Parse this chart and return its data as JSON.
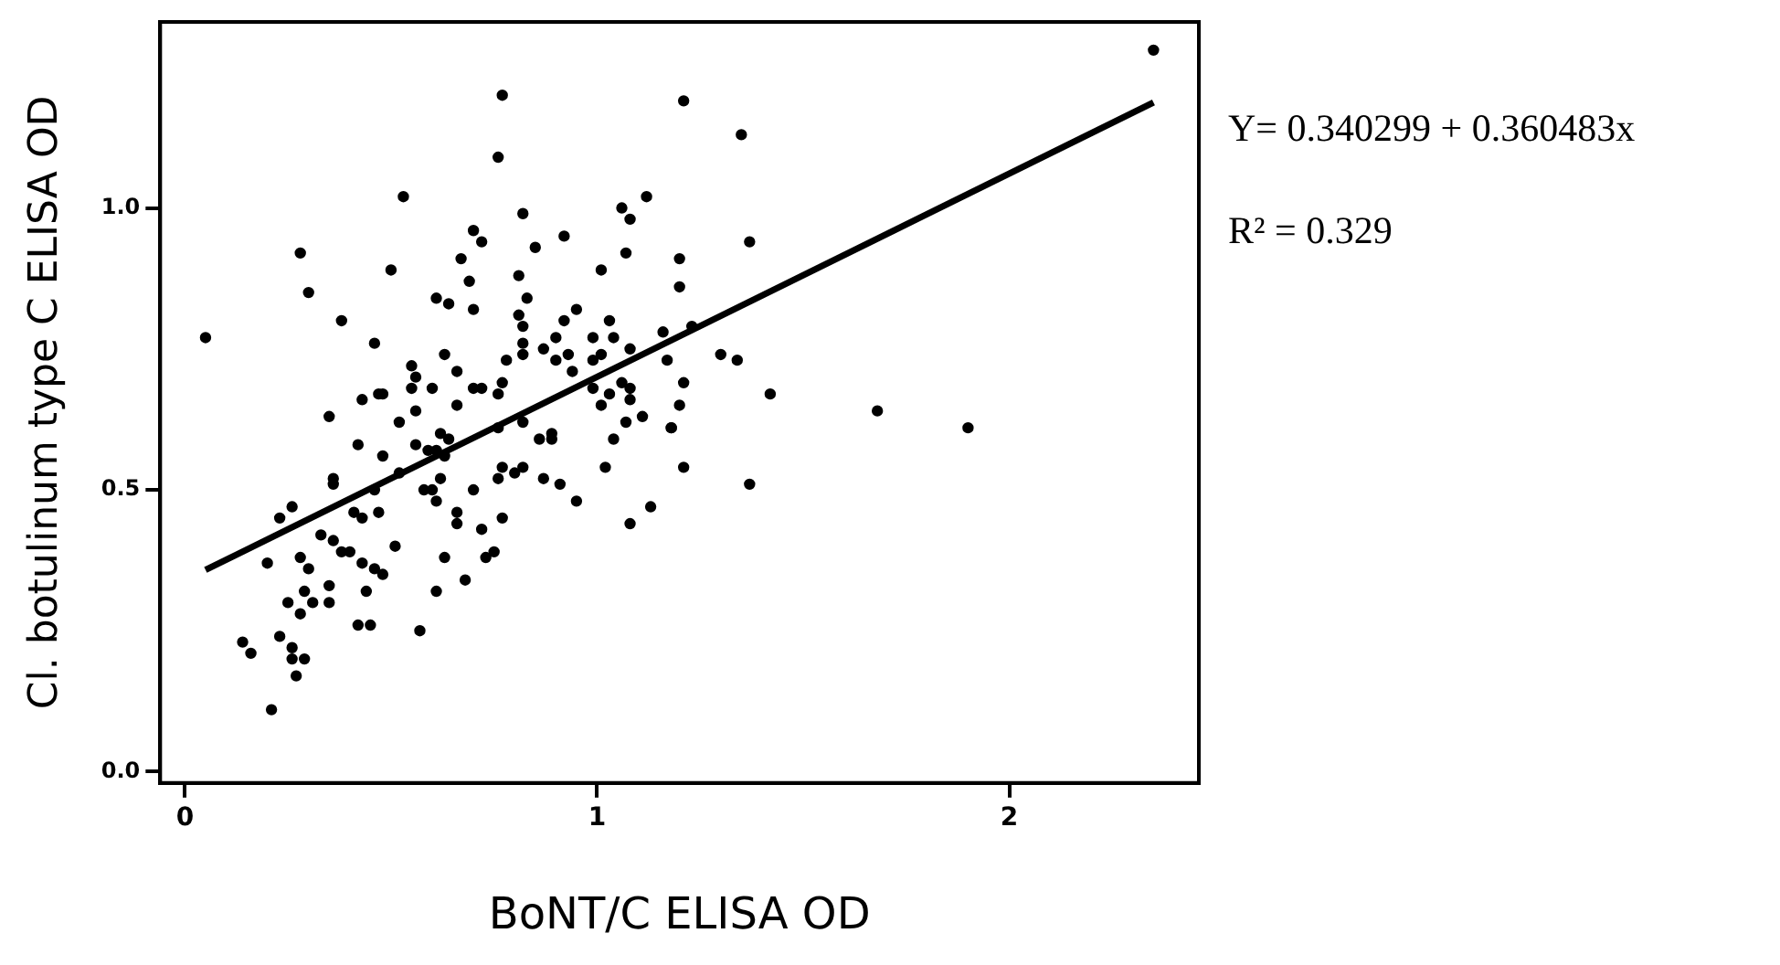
{
  "chart_data": {
    "type": "scatter",
    "xlabel": "BoNT/C ELISA OD",
    "ylabel": "Cl. botulinum type C ELISA OD",
    "annotations": [
      "Y= 0.340299 + 0.360483x",
      "R² = 0.329"
    ],
    "xlim": [
      -0.06,
      2.46
    ],
    "xticks": [
      0,
      1,
      2
    ],
    "ylim": [
      -0.02,
      1.33
    ],
    "yticks": [
      {
        "value": 0,
        "label": "0.0"
      },
      {
        "value": 0.5,
        "label": "0.5"
      },
      {
        "value": 1,
        "label": "1.0"
      }
    ],
    "grid": false,
    "legend": false,
    "marker": "circle",
    "series": [
      {
        "color": "#000000",
        "x": [
          0.05,
          0.28,
          0.3,
          0.38,
          0.46,
          0.35,
          0.43,
          0.47,
          0.48,
          0.5,
          0.53,
          0.52,
          0.56,
          0.55,
          0.56,
          0.55,
          0.6,
          0.61,
          0.64,
          0.63,
          0.66,
          0.66,
          0.67,
          0.69,
          0.7,
          0.7,
          0.72,
          0.76,
          0.77,
          0.7,
          0.72,
          0.76,
          0.77,
          0.78,
          0.81,
          0.82,
          0.83,
          0.85,
          0.81,
          0.82,
          0.82,
          0.82,
          0.87,
          0.9,
          0.9,
          0.92,
          0.92,
          0.93,
          0.95,
          0.94,
          0.99,
          0.99,
          1.01,
          1.01,
          1.03,
          1.04,
          1.06,
          1.07,
          1.08,
          1.12,
          1.08,
          0.99,
          1.01,
          1.03,
          1.06,
          1.08,
          1.08,
          1.07,
          1.11,
          1.16,
          1.17,
          1.2,
          1.2,
          1.21,
          1.21,
          1.2,
          1.18,
          1.3,
          1.23,
          0.82,
          2.35,
          1.35,
          1.37,
          1.34,
          1.42,
          1.68,
          1.9,
          0.26,
          0.23,
          0.2,
          0.28,
          0.3,
          0.25,
          0.28,
          0.29,
          0.31,
          0.35,
          0.35,
          0.23,
          0.26,
          0.26,
          0.29,
          0.27,
          0.21,
          0.14,
          0.16,
          0.33,
          0.36,
          0.38,
          0.4,
          0.36,
          0.36,
          0.42,
          0.48,
          0.41,
          0.43,
          0.47,
          0.51,
          0.43,
          0.46,
          0.48,
          0.44,
          0.42,
          0.45,
          0.46,
          0.52,
          0.56,
          0.59,
          0.61,
          0.63,
          0.58,
          0.6,
          0.62,
          0.61,
          0.62,
          0.64,
          0.57,
          0.61,
          0.63,
          0.66,
          0.66,
          0.68,
          0.7,
          0.72,
          0.73,
          0.75,
          0.77,
          0.76,
          0.77,
          0.76,
          0.8,
          0.82,
          0.87,
          0.86,
          0.89,
          0.89,
          0.91,
          0.95,
          1.02,
          1.04,
          1.08,
          1.13,
          1.21,
          1.18,
          1.37
        ],
        "values": [
          0.77,
          0.92,
          0.85,
          0.8,
          0.76,
          0.63,
          0.66,
          0.67,
          0.67,
          0.89,
          1.02,
          0.62,
          0.64,
          0.72,
          0.7,
          0.68,
          0.68,
          0.84,
          0.83,
          0.74,
          0.71,
          0.65,
          0.91,
          0.87,
          0.82,
          0.96,
          0.94,
          1.09,
          1.2,
          0.68,
          0.68,
          0.67,
          0.69,
          0.73,
          0.88,
          0.99,
          0.84,
          0.93,
          0.81,
          0.79,
          0.76,
          0.74,
          0.75,
          0.77,
          0.73,
          0.8,
          0.95,
          0.74,
          0.82,
          0.71,
          0.77,
          0.73,
          0.74,
          0.89,
          0.8,
          0.77,
          1.0,
          0.92,
          0.98,
          1.02,
          0.75,
          0.68,
          0.65,
          0.67,
          0.69,
          0.68,
          0.66,
          0.62,
          0.63,
          0.78,
          0.73,
          0.91,
          0.86,
          1.19,
          0.69,
          0.65,
          0.61,
          0.74,
          0.79,
          0.62,
          1.28,
          1.13,
          0.94,
          0.73,
          0.67,
          0.64,
          0.61,
          0.47,
          0.45,
          0.37,
          0.38,
          0.36,
          0.3,
          0.28,
          0.32,
          0.3,
          0.33,
          0.3,
          0.24,
          0.22,
          0.2,
          0.2,
          0.17,
          0.11,
          0.23,
          0.21,
          0.42,
          0.41,
          0.39,
          0.39,
          0.52,
          0.51,
          0.58,
          0.56,
          0.46,
          0.45,
          0.46,
          0.4,
          0.37,
          0.36,
          0.35,
          0.32,
          0.26,
          0.26,
          0.5,
          0.53,
          0.58,
          0.57,
          0.57,
          0.56,
          0.5,
          0.5,
          0.52,
          0.48,
          0.6,
          0.59,
          0.25,
          0.32,
          0.38,
          0.46,
          0.44,
          0.34,
          0.5,
          0.43,
          0.38,
          0.39,
          0.45,
          0.52,
          0.54,
          0.61,
          0.53,
          0.54,
          0.52,
          0.59,
          0.59,
          0.6,
          0.51,
          0.48,
          0.54,
          0.59,
          0.44,
          0.47,
          0.54,
          0.61,
          0.51
        ]
      },
      {
        "type": "line",
        "color": "#000000",
        "marker": "none",
        "x": [
          0.05,
          2.35
        ],
        "values": [
          0.358,
          1.187
        ]
      }
    ]
  }
}
